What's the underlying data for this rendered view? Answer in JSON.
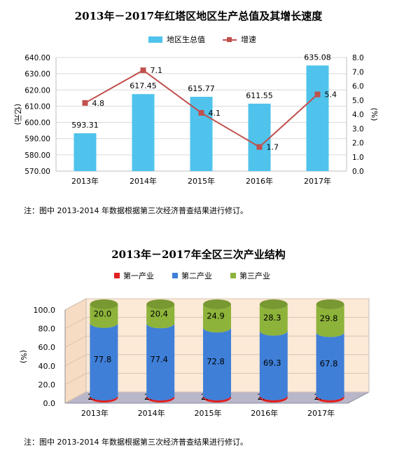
{
  "chart_data": [
    {
      "type": "bar",
      "title": "2013年－2017年红塔区地区生产总值及其增长速度",
      "categories": [
        "2013年",
        "2014年",
        "2015年",
        "2016年",
        "2017年"
      ],
      "series": [
        {
          "name": "地区生总值",
          "type": "bar",
          "axis": "left",
          "values": [
            593.31,
            617.45,
            615.77,
            611.55,
            635.08
          ],
          "labels": [
            "593.31",
            "617.45",
            "615.77",
            "611.55",
            "635.08"
          ],
          "color": "#4FC3EC"
        },
        {
          "name": "增速",
          "type": "line",
          "axis": "right",
          "values": [
            4.8,
            7.1,
            4.1,
            1.7,
            5.4
          ],
          "labels": [
            "4.8",
            "7.1",
            "4.1",
            "1.7",
            "5.4"
          ],
          "color": "#C0504D"
        }
      ],
      "ylabel": "(亿元)",
      "ylim": [
        570,
        640
      ],
      "yticks": [
        "570.00",
        "580.00",
        "590.00",
        "600.00",
        "610.00",
        "620.00",
        "630.00",
        "640.00"
      ],
      "y2label": "(%)",
      "y2lim": [
        0,
        8
      ],
      "y2ticks": [
        "0.0",
        "1.0",
        "2.0",
        "3.0",
        "4.0",
        "5.0",
        "6.0",
        "7.0",
        "8.0"
      ],
      "grid": true,
      "legend": "top"
    },
    {
      "type": "bar",
      "stacked": true,
      "title": "2013年－2017年全区三次产业结构",
      "categories": [
        "2013年",
        "2014年",
        "2015年",
        "2016年",
        "2017年"
      ],
      "series": [
        {
          "name": "第一产业",
          "values": [
            2.2,
            2.2,
            2.3,
            2.4,
            2.4
          ],
          "labels": [
            "2.2",
            "2.2",
            "2.3",
            "2.4",
            "2.4"
          ],
          "color": "#E02020"
        },
        {
          "name": "第二产业",
          "values": [
            77.8,
            77.4,
            72.8,
            69.3,
            67.8
          ],
          "labels": [
            "77.8",
            "77.4",
            "72.8",
            "69.3",
            "67.8"
          ],
          "color": "#3F7FD8"
        },
        {
          "name": "第三产业",
          "values": [
            20.0,
            20.4,
            24.9,
            28.3,
            29.8
          ],
          "labels": [
            "20.0",
            "20.4",
            "24.9",
            "28.3",
            "29.8"
          ],
          "color": "#8DB33A"
        }
      ],
      "ylabel": "(%)",
      "ylim": [
        0,
        100
      ],
      "yticks": [
        "0.0",
        "20.0",
        "40.0",
        "60.0",
        "80.0",
        "100.0"
      ],
      "grid": false,
      "legend": "top"
    }
  ],
  "notes": [
    "注：图中 2013-2014 年数据根据第三次经济普查结果进行修订。",
    "注：图中 2013-2014 年数据根据第三次经济普查结果进行修订。"
  ]
}
